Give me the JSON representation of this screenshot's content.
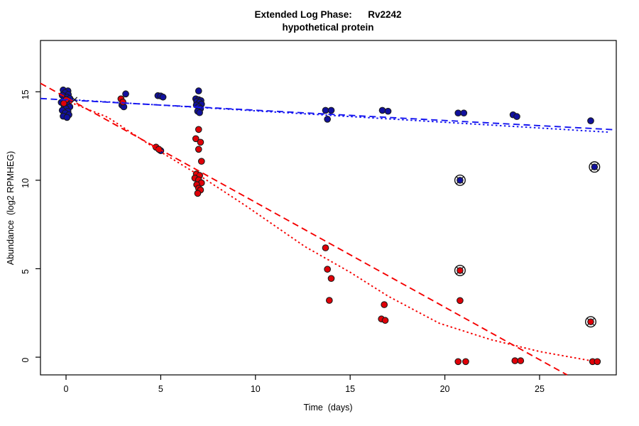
{
  "chart_data": {
    "type": "scatter",
    "title_line1": "Extended Log Phase:      Rv2242",
    "title_line2": "hypothetical protein",
    "xlabel": "Time  (days)",
    "ylabel": "Abundance  (log2 RPMHEG)",
    "xlim": [
      -1.35,
      29.05
    ],
    "ylim": [
      -1.0,
      17.9
    ],
    "xticks": [
      0,
      5,
      10,
      15,
      20,
      25
    ],
    "yticks": [
      0,
      5,
      10,
      15
    ],
    "grid": false,
    "legend": "none",
    "colors": {
      "blue_point": "#10109e",
      "red_point": "#e00008",
      "blue_line": "#1414f0",
      "red_line": "#f50000",
      "marker_edge": "#1a1a1a",
      "flag_ring": "#111111",
      "axis": "#000000"
    },
    "series": [
      {
        "name": "blue-points",
        "marker": "filled-circle",
        "color_key": "blue_point",
        "points": [
          [
            -0.15,
            15.1
          ],
          [
            0.1,
            15.05
          ],
          [
            -0.05,
            14.95
          ],
          [
            0.12,
            14.85
          ],
          [
            -0.2,
            14.8
          ],
          [
            0.05,
            14.7
          ],
          [
            0.2,
            14.62
          ],
          [
            -0.1,
            14.58
          ],
          [
            0,
            14.5
          ],
          [
            0.15,
            14.45
          ],
          [
            -0.25,
            14.4
          ],
          [
            0.05,
            14.3
          ],
          [
            -0.1,
            14.2
          ],
          [
            0.2,
            14.15
          ],
          [
            0,
            14.05
          ],
          [
            -0.2,
            13.95
          ],
          [
            0.1,
            13.9
          ],
          [
            -0.05,
            13.8
          ],
          [
            0.15,
            13.7
          ],
          [
            -0.15,
            13.62
          ],
          [
            0.05,
            13.55
          ],
          [
            3.15,
            14.88
          ],
          [
            2.95,
            14.25
          ],
          [
            3.05,
            14.15
          ],
          [
            4.85,
            14.78
          ],
          [
            5.0,
            14.76
          ],
          [
            5.12,
            14.7
          ],
          [
            5.0,
            11.67
          ],
          [
            7.0,
            15.05
          ],
          [
            6.85,
            14.6
          ],
          [
            7.0,
            14.55
          ],
          [
            7.12,
            14.5
          ],
          [
            6.9,
            14.45
          ],
          [
            7.05,
            14.4
          ],
          [
            7.15,
            14.3
          ],
          [
            6.88,
            14.25
          ],
          [
            7.0,
            14.15
          ],
          [
            7.1,
            14.05
          ],
          [
            6.95,
            13.9
          ],
          [
            7.05,
            13.82
          ],
          [
            13.7,
            13.95
          ],
          [
            14.0,
            13.95
          ],
          [
            13.8,
            13.45
          ],
          [
            16.7,
            13.95
          ],
          [
            17.0,
            13.9
          ],
          [
            20.7,
            13.8
          ],
          [
            21.0,
            13.8
          ],
          [
            23.6,
            13.7
          ],
          [
            23.8,
            13.6
          ],
          [
            27.7,
            13.36
          ]
        ]
      },
      {
        "name": "red-points",
        "marker": "filled-circle",
        "color_key": "red_point",
        "points": [
          [
            0.0,
            14.55
          ],
          [
            -0.12,
            14.35
          ],
          [
            2.9,
            14.6
          ],
          [
            3.0,
            14.42
          ],
          [
            4.75,
            11.87
          ],
          [
            4.9,
            11.75
          ],
          [
            7.0,
            12.87
          ],
          [
            6.85,
            12.35
          ],
          [
            7.1,
            12.15
          ],
          [
            7.0,
            11.75
          ],
          [
            7.15,
            11.07
          ],
          [
            6.88,
            10.35
          ],
          [
            7.05,
            10.27
          ],
          [
            6.8,
            10.12
          ],
          [
            7.0,
            10.02
          ],
          [
            7.15,
            9.85
          ],
          [
            6.9,
            9.75
          ],
          [
            7.0,
            9.55
          ],
          [
            7.1,
            9.45
          ],
          [
            6.95,
            9.26
          ],
          [
            13.7,
            6.18
          ],
          [
            13.8,
            4.97
          ],
          [
            14.0,
            4.45
          ],
          [
            13.9,
            3.21
          ],
          [
            16.8,
            2.97
          ],
          [
            16.65,
            2.16
          ],
          [
            16.85,
            2.08
          ],
          [
            20.8,
            3.2
          ],
          [
            20.7,
            -0.25
          ],
          [
            21.1,
            -0.25
          ],
          [
            23.7,
            -0.2
          ],
          [
            24.0,
            -0.2
          ],
          [
            27.8,
            -0.25
          ],
          [
            28.05,
            -0.25
          ]
        ]
      },
      {
        "name": "flagged-blue-points",
        "marker": "circle-x",
        "color_key": "blue_point",
        "points": [
          [
            20.8,
            10.0
          ],
          [
            27.9,
            10.75
          ]
        ]
      },
      {
        "name": "flagged-red-points",
        "marker": "circle-x",
        "color_key": "red_point",
        "points": [
          [
            20.8,
            4.9
          ],
          [
            27.7,
            2.0
          ]
        ]
      },
      {
        "name": "cross-marker-points",
        "marker": "x",
        "color_key": "marker_edge",
        "points": [
          [
            0.45,
            14.55
          ]
        ]
      }
    ],
    "lines": [
      {
        "name": "blue-dashed-fit",
        "color_key": "blue_line",
        "style": "dashed",
        "points": [
          [
            -1.35,
            14.62
          ],
          [
            29.05,
            12.85
          ]
        ]
      },
      {
        "name": "blue-dotted-fit",
        "color_key": "blue_line",
        "style": "dotted",
        "points": [
          [
            0.0,
            14.57
          ],
          [
            28.6,
            12.72
          ]
        ]
      },
      {
        "name": "red-dashed-fit",
        "color_key": "red_line",
        "style": "dashed",
        "points": [
          [
            -1.35,
            15.48
          ],
          [
            26.45,
            -1.0
          ]
        ]
      },
      {
        "name": "red-dotted-fit",
        "color_key": "red_line",
        "style": "dotted",
        "points": [
          [
            0.0,
            14.5
          ],
          [
            2.2,
            13.56
          ],
          [
            5.0,
            11.6
          ],
          [
            7.0,
            10.3
          ],
          [
            9.5,
            8.55
          ],
          [
            12.6,
            6.26
          ],
          [
            15.0,
            4.8
          ],
          [
            17.0,
            3.45
          ],
          [
            19.7,
            1.92
          ],
          [
            22.4,
            1.0
          ],
          [
            25.0,
            0.32
          ],
          [
            27.7,
            -0.2
          ]
        ]
      }
    ]
  }
}
